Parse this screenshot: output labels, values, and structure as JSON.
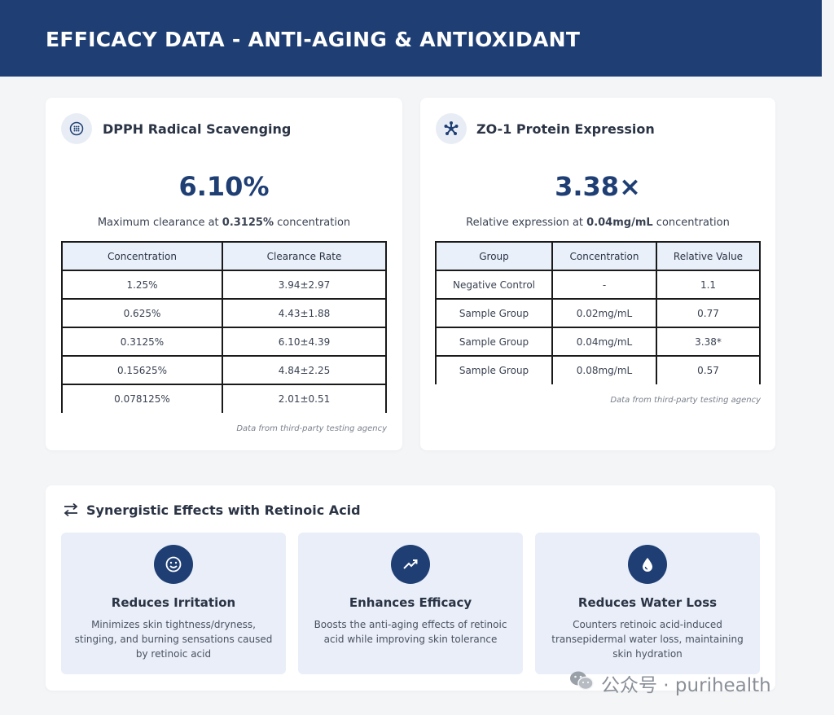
{
  "header": {
    "title": "EFFICACY DATA - ANTI-AGING & ANTIOXIDANT"
  },
  "dpph": {
    "title": "DPPH Radical Scavenging",
    "icon": "dot-grid-icon",
    "value": "6.10%",
    "subtitle_prefix": "Maximum clearance at ",
    "subtitle_bold": "0.3125%",
    "subtitle_suffix": " concentration",
    "columns": [
      "Concentration",
      "Clearance Rate"
    ],
    "rows": [
      [
        "1.25%",
        "3.94±2.97"
      ],
      [
        "0.625%",
        "4.43±1.88"
      ],
      [
        "0.3125%",
        "6.10±4.39"
      ],
      [
        "0.15625%",
        "4.84±2.25"
      ],
      [
        "0.078125%",
        "2.01±0.51"
      ]
    ],
    "source": "Data from third-party testing agency"
  },
  "zo1": {
    "title": "ZO-1 Protein Expression",
    "icon": "molecule-icon",
    "value": "3.38×",
    "subtitle_prefix": "Relative expression at ",
    "subtitle_bold": "0.04mg/mL",
    "subtitle_suffix": " concentration",
    "columns": [
      "Group",
      "Concentration",
      "Relative Value"
    ],
    "rows": [
      [
        "Negative Control",
        "-",
        "1.1"
      ],
      [
        "Sample Group",
        "0.02mg/mL",
        "0.77"
      ],
      [
        "Sample Group",
        "0.04mg/mL",
        "3.38*"
      ],
      [
        "Sample Group",
        "0.08mg/mL",
        "0.57"
      ]
    ],
    "source": "Data from third-party testing agency"
  },
  "synergy": {
    "title": "Synergistic Effects with Retinoic Acid",
    "icon": "swap-arrows-icon",
    "features": [
      {
        "icon": "smile-icon",
        "title": "Reduces Irritation",
        "desc": "Minimizes skin tightness/dryness, stinging, and burning sensations caused by retinoic acid"
      },
      {
        "icon": "trend-up-icon",
        "title": "Enhances Efficacy",
        "desc": "Boosts the anti-aging effects of retinoic acid while improving skin tolerance"
      },
      {
        "icon": "water-drop-icon",
        "title": "Reduces Water Loss",
        "desc": "Counters retinoic acid-induced transepidermal water loss, maintaining skin hydration"
      }
    ]
  },
  "watermark": {
    "text": "公众号 · purihealth",
    "icon": "wechat-icon"
  },
  "colors": {
    "brand": "#1f3f74",
    "table_header": "#eaf0fa",
    "feature_bg": "#e9eef8",
    "page_bg": "#f4f5f7"
  }
}
